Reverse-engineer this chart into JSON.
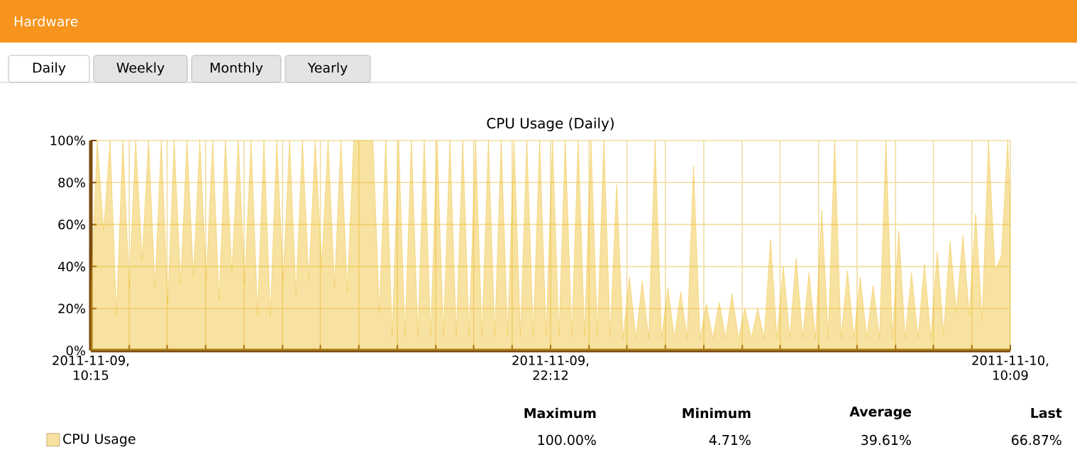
{
  "chart_data": {
    "type": "area",
    "title": "CPU Usage (Daily)",
    "annotations": [
      "Hardware",
      "Daily",
      "Weekly",
      "Monthly",
      "Yearly",
      "Maximum",
      "Minimum",
      "Average",
      "Last",
      "100.00%",
      "4.71%",
      "39.61%",
      "66.87%"
    ],
    "x": [
      "2011-11-09T10:15",
      "2011-11-09T10:25",
      "2011-11-09T10:35",
      "2011-11-09T10:45",
      "2011-11-09T10:55",
      "2011-11-09T11:05",
      "2011-11-09T11:15",
      "2011-11-09T11:25",
      "2011-11-09T11:35",
      "2011-11-09T11:45",
      "2011-11-09T11:55",
      "2011-11-09T12:05",
      "2011-11-09T12:15",
      "2011-11-09T12:25",
      "2011-11-09T12:35",
      "2011-11-09T12:45",
      "2011-11-09T12:55",
      "2011-11-09T13:05",
      "2011-11-09T13:15",
      "2011-11-09T13:25",
      "2011-11-09T13:35",
      "2011-11-09T13:45",
      "2011-11-09T13:55",
      "2011-11-09T14:05",
      "2011-11-09T14:15",
      "2011-11-09T14:25",
      "2011-11-09T14:35",
      "2011-11-09T14:45",
      "2011-11-09T14:55",
      "2011-11-09T15:05",
      "2011-11-09T15:15",
      "2011-11-09T15:25",
      "2011-11-09T15:35",
      "2011-11-09T15:45",
      "2011-11-09T15:55",
      "2011-11-09T16:05",
      "2011-11-09T16:15",
      "2011-11-09T16:25",
      "2011-11-09T16:35",
      "2011-11-09T16:45",
      "2011-11-09T16:55",
      "2011-11-09T17:05",
      "2011-11-09T17:15",
      "2011-11-09T17:25",
      "2011-11-09T17:35",
      "2011-11-09T17:45",
      "2011-11-09T17:55",
      "2011-11-09T18:05",
      "2011-11-09T18:15",
      "2011-11-09T18:25",
      "2011-11-09T18:35",
      "2011-11-09T18:45",
      "2011-11-09T18:55",
      "2011-11-09T19:05",
      "2011-11-09T19:15",
      "2011-11-09T19:25",
      "2011-11-09T19:35",
      "2011-11-09T19:45",
      "2011-11-09T19:55",
      "2011-11-09T20:05",
      "2011-11-09T20:15",
      "2011-11-09T20:25",
      "2011-11-09T20:35",
      "2011-11-09T20:45",
      "2011-11-09T20:55",
      "2011-11-09T21:05",
      "2011-11-09T21:15",
      "2011-11-09T21:25",
      "2011-11-09T21:35",
      "2011-11-09T21:45",
      "2011-11-09T21:55",
      "2011-11-09T22:05",
      "2011-11-09T22:15",
      "2011-11-09T22:25",
      "2011-11-09T22:35",
      "2011-11-09T22:45",
      "2011-11-09T22:55",
      "2011-11-09T23:05",
      "2011-11-09T23:15",
      "2011-11-09T23:25",
      "2011-11-09T23:35",
      "2011-11-09T23:45",
      "2011-11-09T23:55",
      "2011-11-10T00:05",
      "2011-11-10T00:15",
      "2011-11-10T00:25",
      "2011-11-10T00:35",
      "2011-11-10T00:45",
      "2011-11-10T00:55",
      "2011-11-10T01:05",
      "2011-11-10T01:15",
      "2011-11-10T01:25",
      "2011-11-10T01:35",
      "2011-11-10T01:45",
      "2011-11-10T01:55",
      "2011-11-10T02:05",
      "2011-11-10T02:15",
      "2011-11-10T02:25",
      "2011-11-10T02:35",
      "2011-11-10T02:45",
      "2011-11-10T02:55",
      "2011-11-10T03:05",
      "2011-11-10T03:15",
      "2011-11-10T03:25",
      "2011-11-10T03:35",
      "2011-11-10T03:45",
      "2011-11-10T03:55",
      "2011-11-10T04:05",
      "2011-11-10T04:15",
      "2011-11-10T04:25",
      "2011-11-10T04:35",
      "2011-11-10T04:45",
      "2011-11-10T04:55",
      "2011-11-10T05:05",
      "2011-11-10T05:15",
      "2011-11-10T05:25",
      "2011-11-10T05:35",
      "2011-11-10T05:45",
      "2011-11-10T05:55",
      "2011-11-10T06:05",
      "2011-11-10T06:15",
      "2011-11-10T06:25",
      "2011-11-10T06:35",
      "2011-11-10T06:45",
      "2011-11-10T06:55",
      "2011-11-10T07:05",
      "2011-11-10T07:15",
      "2011-11-10T07:25",
      "2011-11-10T07:35",
      "2011-11-10T07:45",
      "2011-11-10T07:55",
      "2011-11-10T08:05",
      "2011-11-10T08:15",
      "2011-11-10T08:25",
      "2011-11-10T08:35",
      "2011-11-10T08:45",
      "2011-11-10T08:55",
      "2011-11-10T09:05",
      "2011-11-10T09:15",
      "2011-11-10T09:25",
      "2011-11-10T09:35",
      "2011-11-10T09:45",
      "2011-11-10T09:55",
      "2011-11-10T10:05",
      "2011-11-10T10:09"
    ],
    "series": [
      {
        "name": "CPU Usage",
        "color": "#edb714",
        "values": [
          25,
          100,
          57,
          100,
          17,
          100,
          30,
          100,
          43,
          100,
          30,
          100,
          22,
          100,
          32,
          100,
          35,
          100,
          33,
          100,
          24,
          100,
          37,
          100,
          32,
          100,
          17,
          100,
          16,
          100,
          33,
          100,
          27,
          100,
          33,
          100,
          40,
          100,
          30,
          100,
          28,
          100,
          100,
          100,
          100,
          18,
          100,
          7,
          100,
          7,
          100,
          7,
          100,
          7,
          100,
          7,
          100,
          7,
          100,
          7,
          100,
          7,
          100,
          7,
          100,
          7,
          100,
          7,
          100,
          7,
          100,
          7,
          100,
          7,
          100,
          7,
          100,
          7,
          100,
          7,
          100,
          7,
          79,
          6,
          35,
          6,
          33,
          6,
          100,
          6,
          30,
          6,
          28,
          6,
          88,
          6,
          22,
          6,
          23,
          6,
          27,
          6,
          20,
          6,
          20,
          6,
          53,
          6,
          40,
          6,
          44,
          6,
          37,
          6,
          67,
          6,
          100,
          6,
          38,
          6,
          35,
          6,
          31,
          6,
          100,
          6,
          57,
          6,
          37,
          6,
          41,
          6,
          47,
          8,
          52,
          18,
          55,
          17,
          65,
          14,
          100,
          38,
          45,
          100,
          67
        ]
      }
    ],
    "xlim": [
      "2011-11-09T10:15",
      "2011-11-10T10:09"
    ],
    "xticks": [
      {
        "value": "2011-11-09T10:15",
        "label": "2011-11-09, 10:15"
      },
      {
        "value": "2011-11-09T11:15",
        "label": null
      },
      {
        "value": "2011-11-09T12:14",
        "label": null
      },
      {
        "value": "2011-11-09T13:14",
        "label": null
      },
      {
        "value": "2011-11-09T14:14",
        "label": null
      },
      {
        "value": "2011-11-09T15:14",
        "label": null
      },
      {
        "value": "2011-11-09T16:13",
        "label": null
      },
      {
        "value": "2011-11-09T17:13",
        "label": null
      },
      {
        "value": "2011-11-09T18:13",
        "label": null
      },
      {
        "value": "2011-11-09T19:13",
        "label": null
      },
      {
        "value": "2011-11-09T20:12",
        "label": null
      },
      {
        "value": "2011-11-09T21:12",
        "label": null
      },
      {
        "value": "2011-11-09T22:12",
        "label": "2011-11-09, 22:12"
      },
      {
        "value": "2011-11-09T23:12",
        "label": null
      },
      {
        "value": "2011-11-10T00:11",
        "label": null
      },
      {
        "value": "2011-11-10T01:11",
        "label": null
      },
      {
        "value": "2011-11-10T02:11",
        "label": null
      },
      {
        "value": "2011-11-10T03:11",
        "label": null
      },
      {
        "value": "2011-11-10T04:10",
        "label": null
      },
      {
        "value": "2011-11-10T05:10",
        "label": null
      },
      {
        "value": "2011-11-10T06:10",
        "label": null
      },
      {
        "value": "2011-11-10T07:10",
        "label": null
      },
      {
        "value": "2011-11-10T08:09",
        "label": null
      },
      {
        "value": "2011-11-10T09:09",
        "label": null
      },
      {
        "value": "2011-11-10T10:09",
        "label": "2011-11-10, 10:09"
      }
    ],
    "ylim": [
      0,
      100
    ],
    "yticks": [
      {
        "value": 0,
        "label": "0%"
      },
      {
        "value": 20,
        "label": "20%"
      },
      {
        "value": 40,
        "label": "40%"
      },
      {
        "value": 60,
        "label": "60%"
      },
      {
        "value": 80,
        "label": "80%"
      },
      {
        "value": 100,
        "label": "100%"
      }
    ],
    "grid": true,
    "legend": "bottom left",
    "marker": "none",
    "line_style": "solid"
  }
}
